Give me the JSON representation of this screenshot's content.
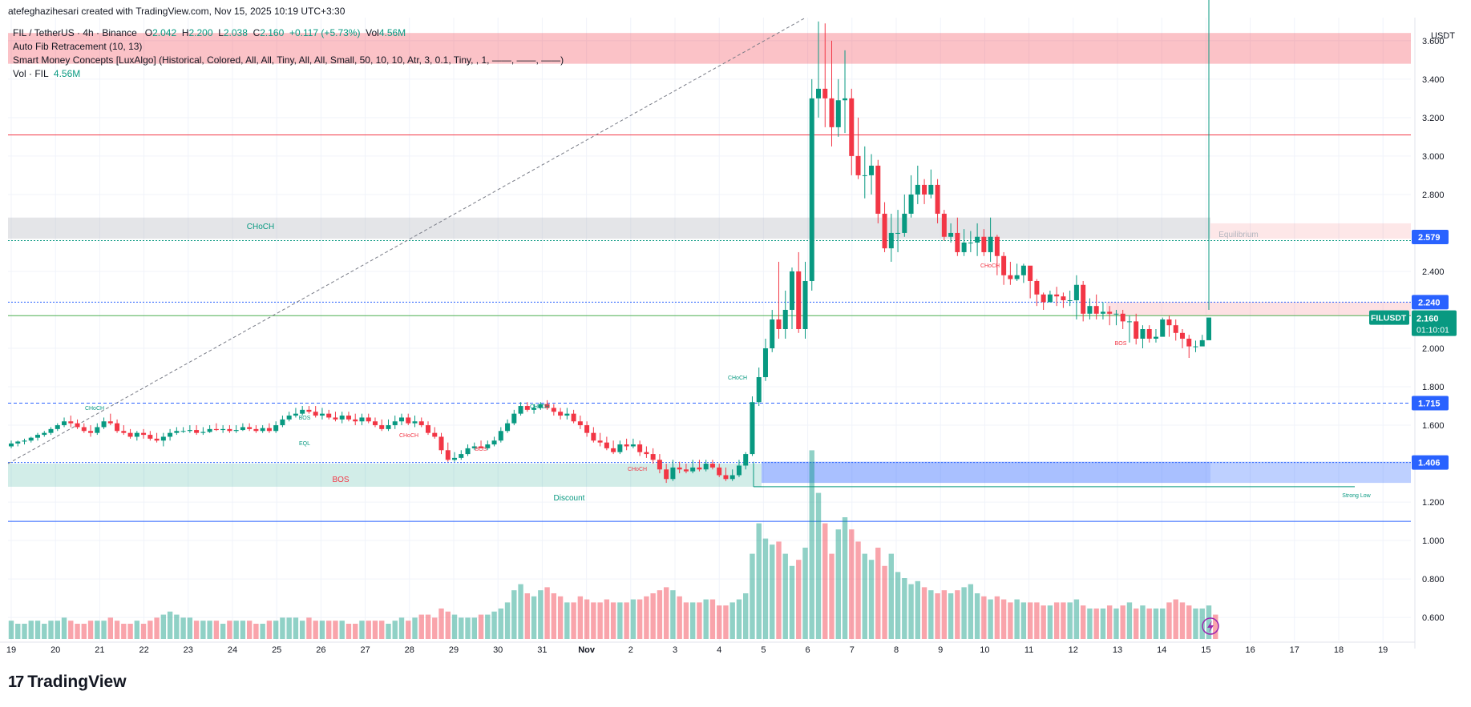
{
  "header": {
    "text": "atefeghazihesari created with TradingView.com, Nov 15, 2025 10:19 UTC+3:30"
  },
  "legend": {
    "symbol": "FIL / TetherUS · 4h · Binance",
    "o_label": "O",
    "o_value": "2.042",
    "h_label": "H",
    "h_value": "2.200",
    "l_label": "L",
    "l_value": "2.038",
    "c_label": "C",
    "c_value": "2.160",
    "change": "+0.117 (+5.73%)",
    "vol_label": "Vol",
    "vol_value": "4.56M",
    "indicator1": "Auto Fib Retracement (10, 13)",
    "indicator2": "Smart Money Concepts [LuxAlgo] (Historical, Colored, All, All, Tiny, All, All, Small, 50, 10, 10, Atr, 3, 0.1, Tiny, , 1, ——, ——, ——)",
    "indicator3_label": "Vol · FIL",
    "indicator3_value": "4.56M"
  },
  "footer": {
    "logo_text": "TradingView"
  },
  "chart_data": {
    "type": "candlestick",
    "title": "FIL / TetherUS · 4h · Binance",
    "currency": "USDT",
    "ylim": [
      0.48,
      3.72
    ],
    "y_ticks": [
      "3.600",
      "3.400",
      "3.200",
      "3.000",
      "2.800",
      "2.400",
      "2.000",
      "1.800",
      "1.600",
      "1.200",
      "1.000",
      "0.800",
      "0.600"
    ],
    "x_ticks": [
      "19",
      "20",
      "21",
      "22",
      "23",
      "24",
      "25",
      "26",
      "27",
      "28",
      "29",
      "30",
      "31",
      "Nov",
      "2",
      "3",
      "4",
      "5",
      "6",
      "7",
      "8",
      "9",
      "10",
      "11",
      "12",
      "13",
      "14",
      "15",
      "16",
      "17",
      "18",
      "19"
    ],
    "price_labels": [
      {
        "text": "2.579",
        "value": 2.579,
        "color": "#2962ff"
      },
      {
        "text": "2.240",
        "value": 2.24,
        "color": "#2962ff"
      },
      {
        "text": "1.715",
        "value": 1.715,
        "color": "#2962ff"
      },
      {
        "text": "1.406",
        "value": 1.406,
        "color": "#2962ff"
      }
    ],
    "last_price": {
      "symbol": "FILUSDT",
      "price": "2.160",
      "countdown": "01:10:01",
      "value": 2.16,
      "color": "#089981"
    },
    "horizontal_lines": [
      {
        "value": 3.11,
        "color": "#f23645",
        "style": "solid"
      },
      {
        "value": 2.24,
        "color": "#2962ff",
        "style": "dotted"
      },
      {
        "value": 2.17,
        "color": "#4caf50",
        "style": "solid"
      },
      {
        "value": 1.715,
        "color": "#2962ff",
        "style": "dashed"
      },
      {
        "value": 1.406,
        "color": "#2962ff",
        "style": "dotted"
      },
      {
        "value": 1.1,
        "color": "#2962ff",
        "style": "solid"
      }
    ],
    "zone_labels": [
      {
        "text": "CHoCH",
        "color": "#089981"
      },
      {
        "text": "Equilibrium",
        "color": "#b2b5be"
      },
      {
        "text": "BOS",
        "color": "#f23645"
      },
      {
        "text": "Discount",
        "color": "#089981"
      },
      {
        "text": "Strong Low",
        "color": "#089981"
      }
    ],
    "structure_labels": [
      {
        "text": "CHoCH",
        "color": "#089981"
      },
      {
        "text": "BOS",
        "color": "#089981"
      },
      {
        "text": "EQL",
        "color": "#089981"
      },
      {
        "text": "CHoCH",
        "color": "#f23645"
      },
      {
        "text": "BOS",
        "color": "#f23645"
      },
      {
        "text": "CHoCH",
        "color": "#089981"
      },
      {
        "text": "CHoCH",
        "color": "#f23645"
      },
      {
        "text": "CHoCH",
        "color": "#089981"
      },
      {
        "text": "CHoCH",
        "color": "#f23645"
      },
      {
        "text": "BOS",
        "color": "#f23645"
      }
    ],
    "candles_open": [
      1.49,
      1.505,
      1.515,
      1.52,
      1.535,
      1.55,
      1.56,
      1.58,
      1.6,
      1.62,
      1.61,
      1.59,
      1.57,
      1.56,
      1.59,
      1.62,
      1.61,
      1.57,
      1.56,
      1.54,
      1.56,
      1.55,
      1.53,
      1.52,
      1.54,
      1.56,
      1.57,
      1.57,
      1.575,
      1.56,
      1.565,
      1.58,
      1.575,
      1.58,
      1.57,
      1.575,
      1.59,
      1.58,
      1.57,
      1.585,
      1.57,
      1.6,
      1.63,
      1.65,
      1.66,
      1.68,
      1.67,
      1.65,
      1.66,
      1.64,
      1.63,
      1.65,
      1.63,
      1.62,
      1.64,
      1.62,
      1.6,
      1.58,
      1.6,
      1.62,
      1.64,
      1.61,
      1.62,
      1.6,
      1.56,
      1.54,
      1.47,
      1.42,
      1.43,
      1.45,
      1.48,
      1.49,
      1.48,
      1.5,
      1.52,
      1.57,
      1.61,
      1.66,
      1.7,
      1.68,
      1.69,
      1.71,
      1.69,
      1.67,
      1.65,
      1.66,
      1.62,
      1.6,
      1.56,
      1.52,
      1.51,
      1.48,
      1.46,
      1.5,
      1.49,
      1.5,
      1.46,
      1.45,
      1.42,
      1.37,
      1.32,
      1.38,
      1.37,
      1.36,
      1.38,
      1.37,
      1.4,
      1.38,
      1.34,
      1.32,
      1.34,
      1.39,
      1.45,
      1.72,
      1.85,
      2.0,
      2.15,
      2.1,
      2.2,
      2.4,
      2.1,
      2.35,
      3.3,
      3.35,
      3.3,
      3.15,
      3.29,
      3.3,
      3.0,
      2.9,
      2.9,
      2.95,
      2.7,
      2.52,
      2.6,
      2.6,
      2.7,
      2.8,
      2.85,
      2.8,
      2.85,
      2.7,
      2.58,
      2.6,
      2.5,
      2.55,
      2.55,
      2.58,
      2.5,
      2.58,
      2.48,
      2.38,
      2.36,
      2.38,
      2.43,
      2.35,
      2.28,
      2.24,
      2.28,
      2.27,
      2.25,
      2.25,
      2.33,
      2.18,
      2.22,
      2.18,
      2.19,
      2.18,
      2.18,
      2.14,
      2.14,
      2.05,
      2.1,
      2.05,
      2.06,
      2.15,
      2.12,
      2.08,
      2.05,
      2.01,
      2.01,
      2.042
    ],
    "candles_high": [
      1.52,
      1.52,
      1.53,
      1.54,
      1.56,
      1.57,
      1.59,
      1.61,
      1.64,
      1.65,
      1.63,
      1.61,
      1.6,
      1.61,
      1.64,
      1.66,
      1.63,
      1.6,
      1.58,
      1.57,
      1.58,
      1.57,
      1.56,
      1.56,
      1.58,
      1.59,
      1.59,
      1.6,
      1.6,
      1.59,
      1.6,
      1.61,
      1.6,
      1.6,
      1.6,
      1.61,
      1.61,
      1.6,
      1.6,
      1.61,
      1.62,
      1.65,
      1.67,
      1.69,
      1.7,
      1.7,
      1.7,
      1.69,
      1.68,
      1.67,
      1.67,
      1.67,
      1.66,
      1.66,
      1.66,
      1.64,
      1.63,
      1.63,
      1.65,
      1.66,
      1.66,
      1.65,
      1.64,
      1.62,
      1.59,
      1.56,
      1.51,
      1.46,
      1.47,
      1.5,
      1.51,
      1.52,
      1.52,
      1.54,
      1.59,
      1.63,
      1.68,
      1.72,
      1.72,
      1.71,
      1.72,
      1.73,
      1.71,
      1.69,
      1.69,
      1.68,
      1.65,
      1.62,
      1.59,
      1.56,
      1.54,
      1.52,
      1.52,
      1.53,
      1.53,
      1.52,
      1.49,
      1.48,
      1.45,
      1.4,
      1.42,
      1.41,
      1.4,
      1.42,
      1.42,
      1.42,
      1.42,
      1.4,
      1.38,
      1.37,
      1.42,
      1.46,
      1.75,
      1.9,
      2.05,
      2.2,
      2.45,
      2.3,
      2.42,
      2.5,
      2.45,
      3.4,
      3.7,
      3.69,
      3.6,
      3.4,
      3.55,
      3.35,
      3.2,
      3.05,
      3.01,
      2.98,
      2.76,
      2.7,
      2.72,
      2.8,
      2.9,
      2.95,
      2.88,
      2.93,
      2.88,
      2.72,
      2.65,
      2.68,
      2.62,
      2.61,
      2.65,
      2.62,
      2.68,
      2.59,
      2.5,
      2.45,
      2.44,
      2.44,
      2.4,
      2.36,
      2.29,
      2.3,
      2.32,
      2.29,
      2.3,
      2.38,
      2.35,
      2.26,
      2.28,
      2.24,
      2.22,
      2.2,
      2.2,
      2.17,
      2.18,
      2.12,
      2.12,
      2.1,
      2.16,
      2.17,
      2.15,
      2.1,
      2.07,
      2.04,
      2.07,
      2.2
    ],
    "candles_low": [
      1.48,
      1.49,
      1.5,
      1.51,
      1.52,
      1.54,
      1.55,
      1.57,
      1.59,
      1.59,
      1.58,
      1.56,
      1.54,
      1.55,
      1.58,
      1.6,
      1.56,
      1.55,
      1.53,
      1.52,
      1.53,
      1.52,
      1.51,
      1.49,
      1.52,
      1.55,
      1.56,
      1.56,
      1.55,
      1.55,
      1.56,
      1.57,
      1.56,
      1.56,
      1.56,
      1.57,
      1.57,
      1.56,
      1.56,
      1.56,
      1.56,
      1.59,
      1.62,
      1.64,
      1.65,
      1.66,
      1.64,
      1.63,
      1.63,
      1.62,
      1.61,
      1.62,
      1.6,
      1.6,
      1.61,
      1.59,
      1.57,
      1.57,
      1.58,
      1.6,
      1.6,
      1.59,
      1.59,
      1.55,
      1.53,
      1.45,
      1.41,
      1.41,
      1.42,
      1.44,
      1.47,
      1.48,
      1.47,
      1.49,
      1.51,
      1.56,
      1.6,
      1.65,
      1.67,
      1.66,
      1.68,
      1.68,
      1.65,
      1.63,
      1.63,
      1.61,
      1.58,
      1.54,
      1.51,
      1.49,
      1.47,
      1.45,
      1.45,
      1.47,
      1.48,
      1.44,
      1.43,
      1.4,
      1.35,
      1.3,
      1.31,
      1.35,
      1.35,
      1.35,
      1.36,
      1.36,
      1.37,
      1.33,
      1.31,
      1.31,
      1.33,
      1.37,
      1.44,
      1.7,
      1.83,
      1.98,
      2.05,
      2.05,
      2.1,
      2.08,
      2.05,
      2.3,
      3.2,
      3.15,
      3.05,
      3.1,
      3.12,
      2.9,
      2.88,
      2.78,
      2.8,
      2.65,
      2.5,
      2.45,
      2.5,
      2.58,
      2.68,
      2.75,
      2.75,
      2.78,
      2.65,
      2.56,
      2.55,
      2.48,
      2.48,
      2.5,
      2.48,
      2.48,
      2.45,
      2.38,
      2.33,
      2.33,
      2.35,
      2.34,
      2.26,
      2.22,
      2.2,
      2.24,
      2.22,
      2.21,
      2.22,
      2.15,
      2.14,
      2.15,
      2.15,
      2.15,
      2.12,
      2.12,
      2.1,
      2.03,
      2.02,
      2.0,
      2.03,
      2.03,
      2.1,
      2.06,
      2.04,
      2.0,
      1.95,
      1.98,
      2.038
    ],
    "candles_close": [
      1.505,
      1.515,
      1.52,
      1.535,
      1.55,
      1.56,
      1.58,
      1.6,
      1.62,
      1.61,
      1.59,
      1.57,
      1.56,
      1.59,
      1.62,
      1.61,
      1.57,
      1.56,
      1.54,
      1.56,
      1.55,
      1.53,
      1.52,
      1.54,
      1.56,
      1.57,
      1.57,
      1.575,
      1.56,
      1.565,
      1.58,
      1.575,
      1.58,
      1.57,
      1.575,
      1.59,
      1.58,
      1.57,
      1.585,
      1.57,
      1.6,
      1.63,
      1.65,
      1.66,
      1.68,
      1.67,
      1.65,
      1.66,
      1.64,
      1.63,
      1.65,
      1.63,
      1.62,
      1.64,
      1.62,
      1.6,
      1.58,
      1.6,
      1.62,
      1.64,
      1.61,
      1.62,
      1.6,
      1.56,
      1.54,
      1.47,
      1.42,
      1.43,
      1.45,
      1.48,
      1.49,
      1.48,
      1.5,
      1.52,
      1.57,
      1.61,
      1.66,
      1.7,
      1.68,
      1.69,
      1.71,
      1.69,
      1.67,
      1.65,
      1.66,
      1.62,
      1.6,
      1.56,
      1.52,
      1.51,
      1.48,
      1.46,
      1.5,
      1.49,
      1.5,
      1.46,
      1.45,
      1.42,
      1.37,
      1.32,
      1.38,
      1.37,
      1.36,
      1.38,
      1.37,
      1.4,
      1.38,
      1.34,
      1.32,
      1.34,
      1.39,
      1.45,
      1.72,
      1.85,
      2.0,
      2.15,
      2.1,
      2.2,
      2.4,
      2.1,
      2.35,
      3.3,
      3.35,
      3.3,
      3.15,
      3.29,
      3.3,
      3.0,
      2.9,
      2.9,
      2.95,
      2.7,
      2.52,
      2.6,
      2.6,
      2.7,
      2.8,
      2.85,
      2.8,
      2.85,
      2.7,
      2.58,
      2.6,
      2.5,
      2.55,
      2.55,
      2.58,
      2.5,
      2.58,
      2.48,
      2.38,
      2.36,
      2.38,
      2.43,
      2.35,
      2.28,
      2.24,
      2.28,
      2.27,
      2.25,
      2.25,
      2.33,
      2.18,
      2.22,
      2.18,
      2.19,
      2.18,
      2.18,
      2.14,
      2.14,
      2.05,
      2.1,
      2.05,
      2.06,
      2.15,
      2.12,
      2.08,
      2.05,
      2.01,
      2.01,
      2.042,
      2.16
    ],
    "volume_relative": [
      0.06,
      0.05,
      0.05,
      0.06,
      0.06,
      0.05,
      0.06,
      0.06,
      0.07,
      0.06,
      0.05,
      0.05,
      0.06,
      0.06,
      0.06,
      0.07,
      0.06,
      0.05,
      0.05,
      0.06,
      0.05,
      0.06,
      0.07,
      0.08,
      0.09,
      0.08,
      0.07,
      0.07,
      0.06,
      0.06,
      0.06,
      0.06,
      0.05,
      0.06,
      0.06,
      0.06,
      0.06,
      0.05,
      0.05,
      0.06,
      0.06,
      0.07,
      0.07,
      0.07,
      0.06,
      0.07,
      0.06,
      0.06,
      0.06,
      0.06,
      0.06,
      0.05,
      0.05,
      0.06,
      0.06,
      0.06,
      0.06,
      0.05,
      0.06,
      0.07,
      0.06,
      0.07,
      0.08,
      0.08,
      0.07,
      0.1,
      0.09,
      0.08,
      0.07,
      0.07,
      0.07,
      0.08,
      0.08,
      0.09,
      0.1,
      0.12,
      0.16,
      0.18,
      0.15,
      0.14,
      0.16,
      0.17,
      0.15,
      0.14,
      0.12,
      0.12,
      0.14,
      0.13,
      0.12,
      0.12,
      0.13,
      0.12,
      0.12,
      0.12,
      0.13,
      0.13,
      0.14,
      0.15,
      0.16,
      0.17,
      0.16,
      0.14,
      0.12,
      0.12,
      0.12,
      0.13,
      0.13,
      0.11,
      0.11,
      0.12,
      0.13,
      0.15,
      0.28,
      0.38,
      0.33,
      0.31,
      0.32,
      0.28,
      0.24,
      0.26,
      0.3,
      0.62,
      0.48,
      0.38,
      0.28,
      0.36,
      0.4,
      0.36,
      0.32,
      0.28,
      0.26,
      0.3,
      0.24,
      0.28,
      0.22,
      0.2,
      0.18,
      0.19,
      0.17,
      0.16,
      0.15,
      0.16,
      0.15,
      0.16,
      0.17,
      0.18,
      0.15,
      0.14,
      0.13,
      0.14,
      0.13,
      0.12,
      0.13,
      0.12,
      0.12,
      0.12,
      0.11,
      0.11,
      0.12,
      0.12,
      0.12,
      0.13,
      0.11,
      0.1,
      0.1,
      0.1,
      0.11,
      0.1,
      0.11,
      0.12,
      0.1,
      0.11,
      0.1,
      0.1,
      0.1,
      0.12,
      0.13,
      0.12,
      0.11,
      0.1,
      0.1,
      0.11,
      0.08
    ],
    "up_color": "#089981",
    "down_color": "#f23645",
    "grid": true,
    "legend_position": "top-left"
  }
}
